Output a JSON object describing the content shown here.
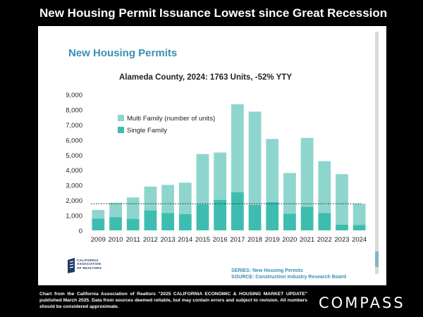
{
  "slide": {
    "title": "New Housing Permit Issuance Lowest since Great Recession",
    "footnote": "Chart from the California Association of Realtors \"2025 CALIFORNIA ECONOMIC & HOUSING MARKET UPDATE\" published March 2025. Data from sources deemed reliable, but may contain errors and subject to revision. All numbers should be considered approximate.",
    "brand": "COMPASS"
  },
  "chart_data": {
    "type": "bar",
    "title": "New Housing Permits",
    "subtitle": "Alameda County, 2024: 1763 Units, -52% YTY",
    "categories": [
      "2009",
      "2010",
      "2011",
      "2012",
      "2013",
      "2014",
      "2015",
      "2016",
      "2017",
      "2018",
      "2019",
      "2020",
      "2021",
      "2022",
      "2023",
      "2024"
    ],
    "series": [
      {
        "name": "Single Family",
        "color": "#3dbdb0",
        "values": [
          780,
          880,
          760,
          1320,
          1150,
          1080,
          1720,
          2020,
          2520,
          1680,
          1870,
          1100,
          1560,
          1150,
          380,
          360
        ]
      },
      {
        "name": "Multi Family (number of units)",
        "color": "#8ed5ce",
        "values": [
          570,
          950,
          1420,
          1580,
          1860,
          2080,
          3330,
          3130,
          5830,
          6180,
          4180,
          2700,
          4560,
          3430,
          3340,
          1400
        ]
      }
    ],
    "yticks": [
      "0",
      "1,000",
      "2,000",
      "3,000",
      "4,000",
      "5,000",
      "6,000",
      "7,000",
      "8,000",
      "9,000"
    ],
    "ylim": [
      0,
      9000
    ],
    "reference_line": 1763,
    "legend_position": "top-left",
    "series_note": "SERIES: New Housing Permits",
    "source_note": "SOURCE:  Construction Industry Research Board",
    "logo_text": [
      "CALIFORNIA",
      "ASSOCIATION",
      "OF REALTORS"
    ]
  }
}
